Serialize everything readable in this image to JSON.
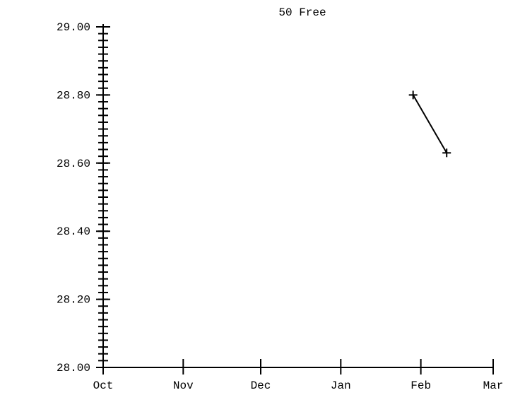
{
  "chart_data": {
    "type": "line",
    "title": "50 Free",
    "xlabel": "",
    "ylabel": "",
    "x_ticks": [
      "Oct",
      "Nov",
      "Dec",
      "Jan",
      "Feb",
      "Mar"
    ],
    "y_ticks": [
      "28.00",
      "28.20",
      "28.40",
      "28.60",
      "28.80",
      "29.00"
    ],
    "ylim": [
      28.0,
      29.0
    ],
    "xlim": [
      "2000-10-01",
      "2001-03-01"
    ],
    "grid": false,
    "series": [
      {
        "marker": "plus",
        "color": "#000000",
        "points": [
          {
            "x": "2001-01-29",
            "y": 28.8
          },
          {
            "x": "2001-02-11",
            "y": 28.63
          }
        ]
      }
    ]
  }
}
